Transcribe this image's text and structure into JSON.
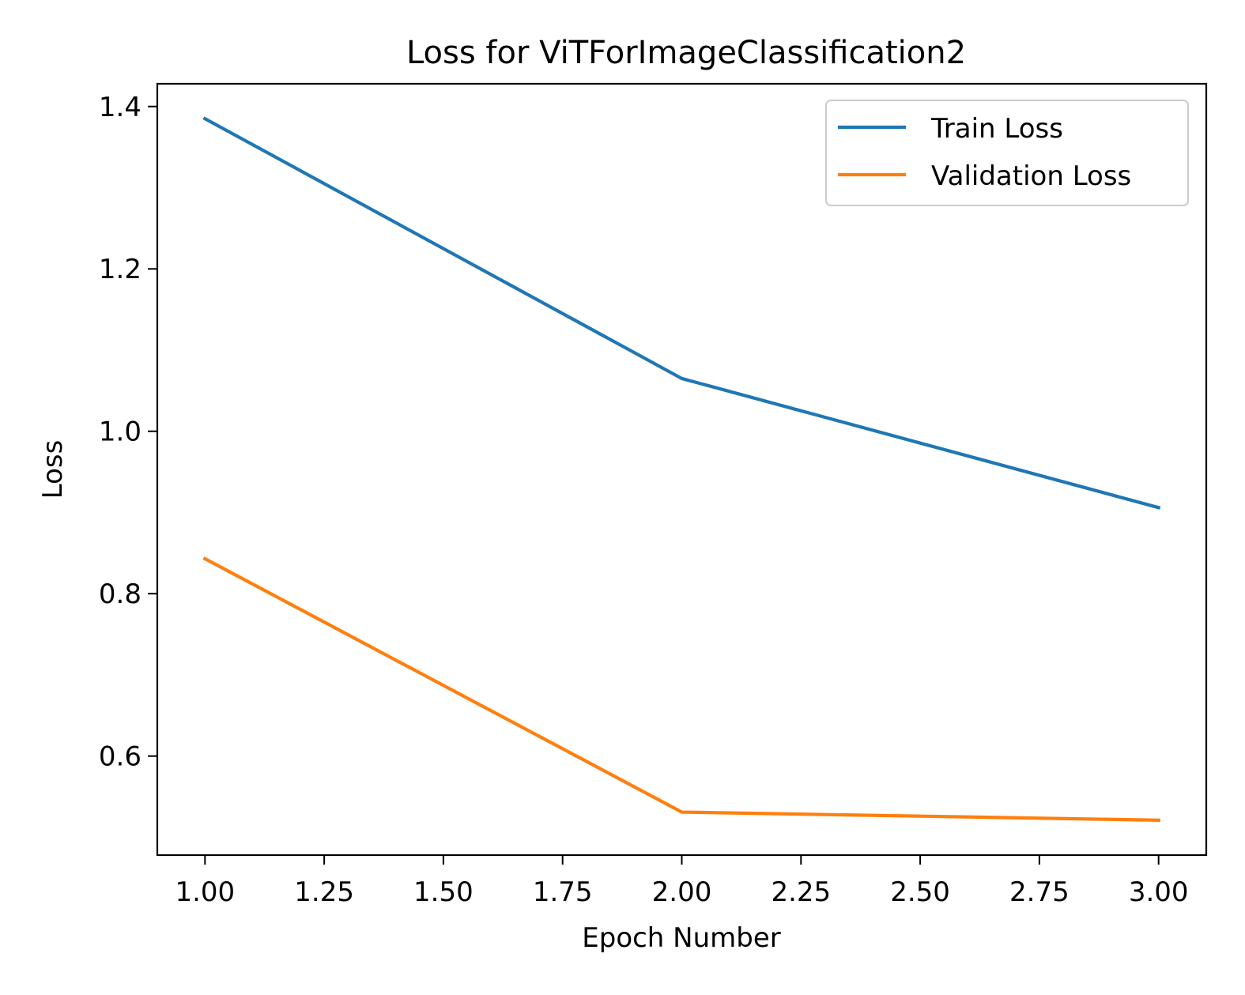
{
  "chart_data": {
    "type": "line",
    "title": "Loss for ViTForImageClassification2",
    "xlabel": "Epoch Number",
    "ylabel": "Loss",
    "x": [
      1,
      2,
      3
    ],
    "series": [
      {
        "name": "Train Loss",
        "values": [
          1.385,
          1.065,
          0.906
        ],
        "color": "#1f77b4"
      },
      {
        "name": "Validation Loss",
        "values": [
          0.843,
          0.531,
          0.521
        ],
        "color": "#ff7f0e"
      }
    ],
    "xlim": [
      0.9,
      3.1
    ],
    "ylim": [
      0.478,
      1.428
    ],
    "xticks": [
      1.0,
      1.25,
      1.5,
      1.75,
      2.0,
      2.25,
      2.5,
      2.75,
      3.0
    ],
    "xtick_labels": [
      "1.00",
      "1.25",
      "1.50",
      "1.75",
      "2.00",
      "2.25",
      "2.50",
      "2.75",
      "3.00"
    ],
    "yticks": [
      0.6,
      0.8,
      1.0,
      1.2,
      1.4
    ],
    "ytick_labels": [
      "0.6",
      "0.8",
      "1.0",
      "1.2",
      "1.4"
    ],
    "grid": false,
    "legend": "top-right"
  }
}
